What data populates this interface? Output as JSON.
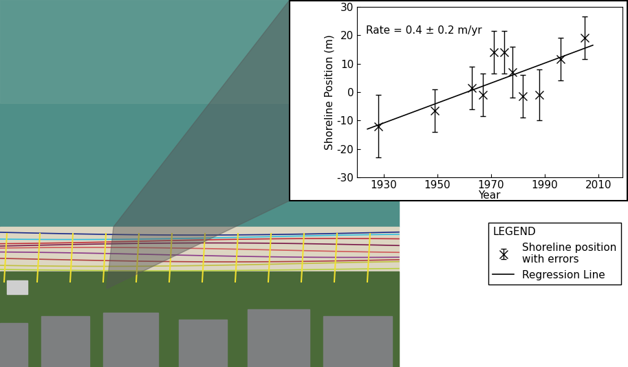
{
  "chart_data": {
    "type": "errorbar",
    "annotation": "Rate = 0.4 ± 0.2 m/yr",
    "x_label": "Year",
    "y_label": "Shoreline Position (m)",
    "xlim": [
      1920,
      2019
    ],
    "xticks": [
      1930,
      1950,
      1970,
      1990,
      2010
    ],
    "ylim": [
      -30,
      30
    ],
    "yticks": [
      -30,
      -20,
      -10,
      0,
      10,
      20,
      30
    ],
    "legend_title": "LEGEND",
    "legend": "center right",
    "series": [
      {
        "name": "Shoreline position\nwith errors",
        "type": "errorbar",
        "color": "#000000",
        "marker": "x",
        "x": [
          1928,
          1949,
          1963,
          1967,
          1971,
          1975,
          1978,
          1982,
          1988,
          1996,
          2005
        ],
        "values": [
          -12,
          -6.5,
          1.5,
          -1,
          14,
          14,
          7,
          -1.5,
          -1,
          11.5,
          19
        ],
        "errors": [
          11,
          7.5,
          7.5,
          7.5,
          7.5,
          7.5,
          9,
          7.5,
          9,
          7.5,
          7.5
        ]
      },
      {
        "name": "Regression Line",
        "type": "line",
        "color": "#000000",
        "line_style": "solid",
        "x": [
          1924,
          2008
        ],
        "values": [
          -13,
          16.5
        ]
      }
    ]
  }
}
